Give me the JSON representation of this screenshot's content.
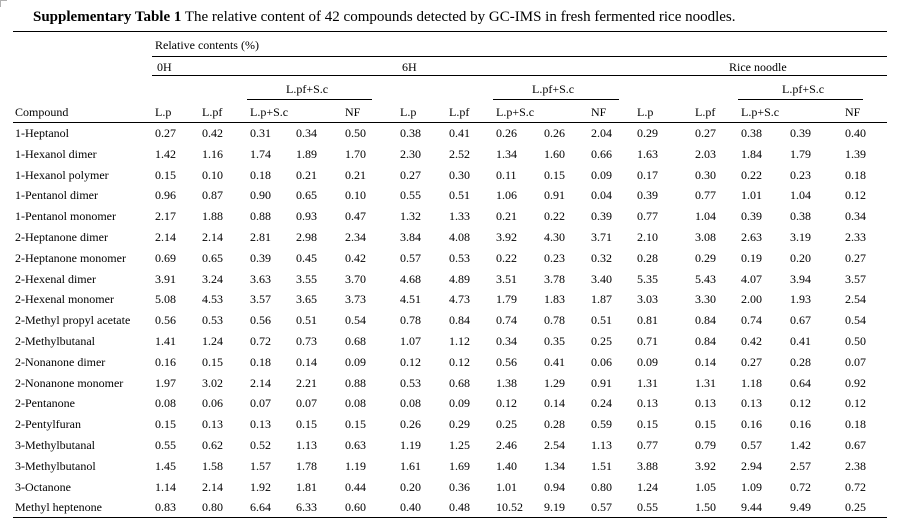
{
  "caption": {
    "label": "Supplementary Table 1",
    "text": "The relative content of 42 compounds detected by GC-IMS in fresh fermented rice noodles."
  },
  "header": {
    "relative_contents": "Relative contents (%)",
    "groups": [
      "0H",
      "6H",
      "Rice noodle"
    ],
    "subgroup_label": "L.pf+S.c",
    "compound_label": "Compound",
    "columns": [
      "L.p",
      "L.pf",
      "L.p+S.c",
      "NF"
    ]
  },
  "rows": [
    {
      "name": "1-Heptanol",
      "values": [
        "0.27",
        "0.42",
        "0.31",
        "0.34",
        "0.50",
        "0.38",
        "0.41",
        "0.26",
        "0.26",
        "2.04",
        "0.29",
        "0.27",
        "0.38",
        "0.39",
        "0.40"
      ]
    },
    {
      "name": "1-Hexanol dimer",
      "values": [
        "1.42",
        "1.16",
        "1.74",
        "1.89",
        "1.70",
        "2.30",
        "2.52",
        "1.34",
        "1.60",
        "0.66",
        "1.63",
        "2.03",
        "1.84",
        "1.79",
        "1.39"
      ]
    },
    {
      "name": "1-Hexanol polymer",
      "values": [
        "0.15",
        "0.10",
        "0.18",
        "0.21",
        "0.21",
        "0.27",
        "0.30",
        "0.11",
        "0.15",
        "0.09",
        "0.17",
        "0.30",
        "0.22",
        "0.23",
        "0.18"
      ]
    },
    {
      "name": "1-Pentanol dimer",
      "values": [
        "0.96",
        "0.87",
        "0.90",
        "0.65",
        "0.10",
        "0.55",
        "0.51",
        "1.06",
        "0.91",
        "0.04",
        "0.39",
        "0.77",
        "1.01",
        "1.04",
        "0.12"
      ]
    },
    {
      "name": "1-Pentanol monomer",
      "values": [
        "2.17",
        "1.88",
        "0.88",
        "0.93",
        "0.47",
        "1.32",
        "1.33",
        "0.21",
        "0.22",
        "0.39",
        "0.77",
        "1.04",
        "0.39",
        "0.38",
        "0.34"
      ]
    },
    {
      "name": "2-Heptanone dimer",
      "values": [
        "2.14",
        "2.14",
        "2.81",
        "2.98",
        "2.34",
        "3.84",
        "4.08",
        "3.92",
        "4.30",
        "3.71",
        "2.10",
        "3.08",
        "2.63",
        "3.19",
        "2.33"
      ]
    },
    {
      "name": "2-Heptanone monomer",
      "values": [
        "0.69",
        "0.65",
        "0.39",
        "0.45",
        "0.42",
        "0.57",
        "0.53",
        "0.22",
        "0.23",
        "0.32",
        "0.28",
        "0.29",
        "0.19",
        "0.20",
        "0.27"
      ]
    },
    {
      "name": "2-Hexenal dimer",
      "values": [
        "3.91",
        "3.24",
        "3.63",
        "3.55",
        "3.70",
        "4.68",
        "4.89",
        "3.51",
        "3.78",
        "3.40",
        "5.35",
        "5.43",
        "4.07",
        "3.94",
        "3.57"
      ]
    },
    {
      "name": "2-Hexenal monomer",
      "values": [
        "5.08",
        "4.53",
        "3.57",
        "3.65",
        "3.73",
        "4.51",
        "4.73",
        "1.79",
        "1.83",
        "1.87",
        "3.03",
        "3.30",
        "2.00",
        "1.93",
        "2.54"
      ]
    },
    {
      "name": "2-Methyl propyl acetate",
      "values": [
        "0.56",
        "0.53",
        "0.56",
        "0.51",
        "0.54",
        "0.78",
        "0.84",
        "0.74",
        "0.78",
        "0.51",
        "0.81",
        "0.84",
        "0.74",
        "0.67",
        "0.54"
      ]
    },
    {
      "name": "2-Methylbutanal",
      "values": [
        "1.41",
        "1.24",
        "0.72",
        "0.73",
        "0.68",
        "1.07",
        "1.12",
        "0.34",
        "0.35",
        "0.25",
        "0.71",
        "0.84",
        "0.42",
        "0.41",
        "0.50"
      ]
    },
    {
      "name": "2-Nonanone dimer",
      "values": [
        "0.16",
        "0.15",
        "0.18",
        "0.14",
        "0.09",
        "0.12",
        "0.12",
        "0.56",
        "0.41",
        "0.06",
        "0.09",
        "0.14",
        "0.27",
        "0.28",
        "0.07"
      ]
    },
    {
      "name": "2-Nonanone monomer",
      "values": [
        "1.97",
        "3.02",
        "2.14",
        "2.21",
        "0.88",
        "0.53",
        "0.68",
        "1.38",
        "1.29",
        "0.91",
        "1.31",
        "1.31",
        "1.18",
        "0.64",
        "0.92"
      ]
    },
    {
      "name": "2-Pentanone",
      "values": [
        "0.08",
        "0.06",
        "0.07",
        "0.07",
        "0.08",
        "0.08",
        "0.09",
        "0.12",
        "0.14",
        "0.24",
        "0.13",
        "0.13",
        "0.13",
        "0.12",
        "0.12"
      ]
    },
    {
      "name": "2-Pentylfuran",
      "values": [
        "0.15",
        "0.13",
        "0.13",
        "0.15",
        "0.15",
        "0.26",
        "0.29",
        "0.25",
        "0.28",
        "0.59",
        "0.15",
        "0.15",
        "0.16",
        "0.16",
        "0.18"
      ]
    },
    {
      "name": "3-Methylbutanal",
      "values": [
        "0.55",
        "0.62",
        "0.52",
        "1.13",
        "0.63",
        "1.19",
        "1.25",
        "2.46",
        "2.54",
        "1.13",
        "0.77",
        "0.79",
        "0.57",
        "1.42",
        "0.67"
      ]
    },
    {
      "name": "3-Methylbutanol",
      "values": [
        "1.45",
        "1.58",
        "1.57",
        "1.78",
        "1.19",
        "1.61",
        "1.69",
        "1.40",
        "1.34",
        "1.51",
        "3.88",
        "3.92",
        "2.94",
        "2.57",
        "2.38"
      ]
    },
    {
      "name": "3-Octanone",
      "values": [
        "1.14",
        "2.14",
        "1.92",
        "1.81",
        "0.44",
        "0.20",
        "0.36",
        "1.01",
        "0.94",
        "0.80",
        "1.24",
        "1.05",
        "1.09",
        "0.72",
        "0.72"
      ]
    },
    {
      "name": "Methyl heptenone",
      "values": [
        "0.83",
        "0.80",
        "6.64",
        "6.33",
        "0.60",
        "0.40",
        "0.48",
        "10.52",
        "9.19",
        "0.57",
        "0.55",
        "1.50",
        "9.44",
        "9.49",
        "0.25"
      ]
    }
  ]
}
